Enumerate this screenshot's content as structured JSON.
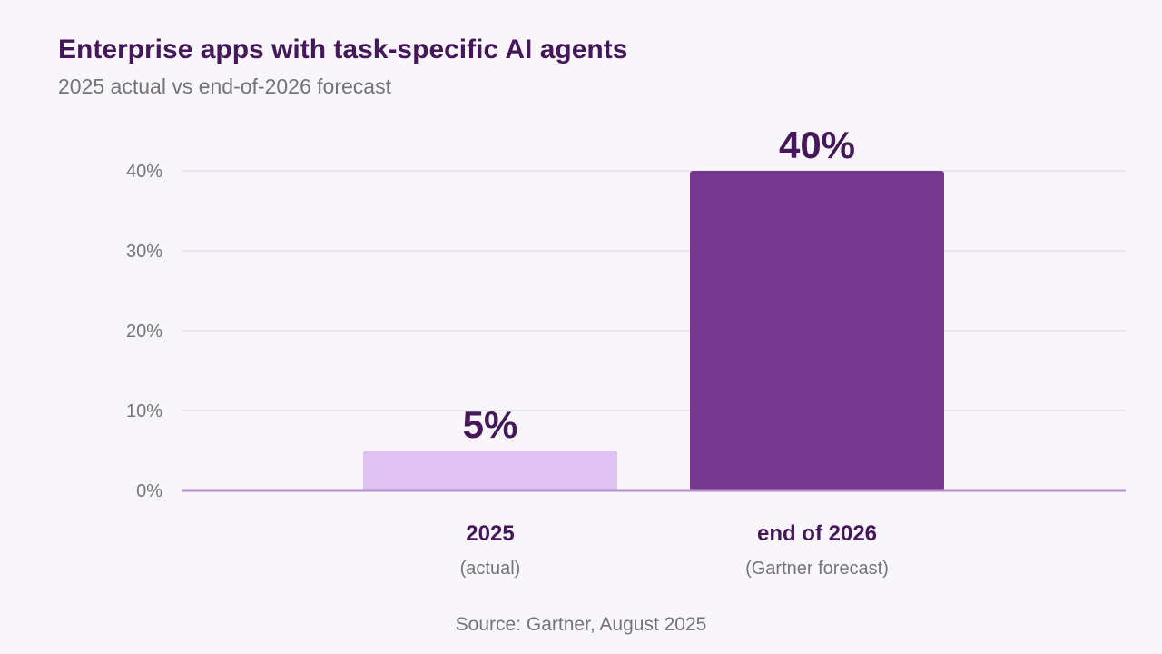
{
  "title": "Enterprise apps with task-specific AI agents",
  "subtitle": "2025 actual vs end-of-2026 forecast",
  "source": "Source: Gartner, August 2025",
  "colors": {
    "background": "#f8f6fb",
    "title": "#45185a",
    "muted": "#777377",
    "grid": "#e3dfe8",
    "baseline": "#b58fcb",
    "bar_actual": "#dfc2f2",
    "bar_forecast": "#75388e"
  },
  "chart_data": {
    "type": "bar",
    "categories": [
      "2025",
      "end of 2026"
    ],
    "category_notes": [
      "(actual)",
      "(Gartner forecast)"
    ],
    "values": [
      5,
      40
    ],
    "value_labels": [
      "5%",
      "40%"
    ],
    "bar_colors": [
      "#dfc2f2",
      "#75388e"
    ],
    "yticks": [
      0,
      10,
      20,
      30,
      40
    ],
    "ytick_labels": [
      "0%",
      "10%",
      "20%",
      "30%",
      "40%"
    ],
    "ylim": [
      0,
      40
    ],
    "grid": true,
    "title": "Enterprise apps with task-specific AI agents",
    "xlabel": "",
    "ylabel": ""
  }
}
